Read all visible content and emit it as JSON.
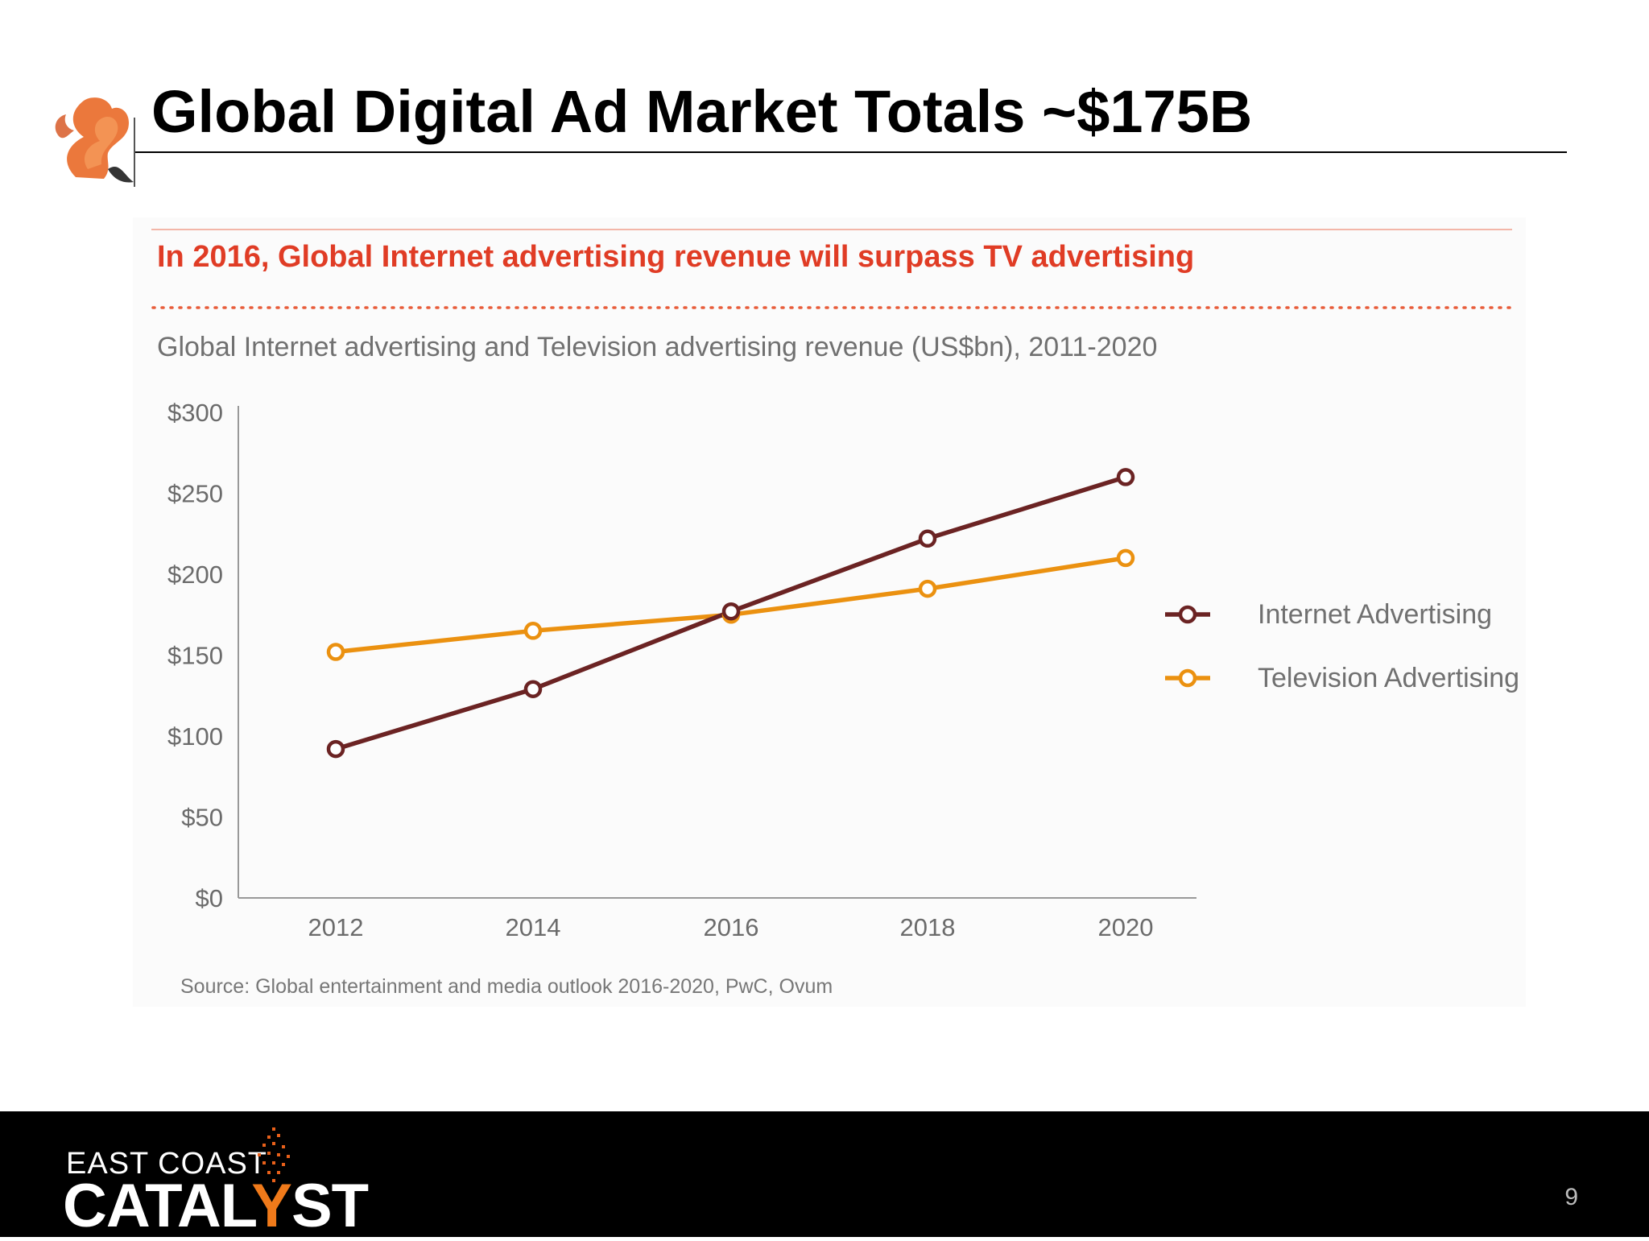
{
  "slide": {
    "title": "Global Digital Ad Market Totals ~$175B",
    "page_number": "9"
  },
  "footer": {
    "brand_line1": "EAST COAST",
    "brand_line2_a": "CATAL",
    "brand_line2_y": "Y",
    "brand_line2_b": "ST"
  },
  "colors": {
    "headline_red": "#e03c25",
    "internet_line": "#6b2323",
    "tv_line": "#eb9110"
  },
  "icons": {
    "header_logo": "smoke-flame-icon",
    "brand_mark": "spark-icon"
  },
  "chart_data": {
    "type": "line",
    "headline": "In 2016, Global Internet advertising revenue will surpass TV advertising",
    "title": "Global Internet advertising and Television advertising revenue (US$bn), 2011-2020",
    "source": "Source: Global entertainment and media outlook 2016-2020, PwC, Ovum",
    "x": [
      "2012",
      "2014",
      "2016",
      "2018",
      "2020"
    ],
    "y_ticks": [
      "$0",
      "$50",
      "$100",
      "$150",
      "$200",
      "$250",
      "$300"
    ],
    "ylim": [
      0,
      300
    ],
    "grid": false,
    "legend_position": "right",
    "series": [
      {
        "name": "Internet Advertising",
        "values": [
          92,
          129,
          177,
          222,
          260
        ]
      },
      {
        "name": "Television Advertising",
        "values": [
          152,
          165,
          175,
          191,
          210
        ]
      }
    ]
  }
}
